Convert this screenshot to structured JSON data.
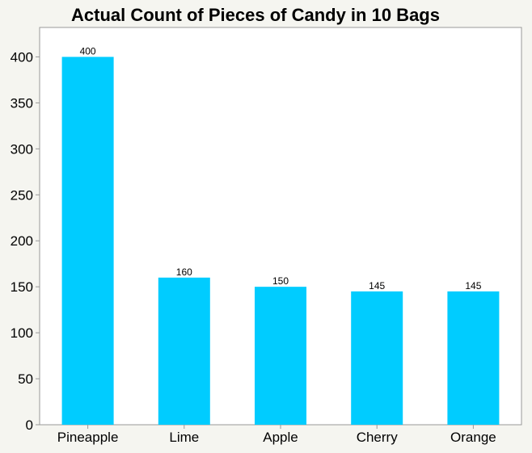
{
  "chart_data": {
    "type": "bar",
    "title": "Actual Count of Pieces of Candy in 10 Bags",
    "categories": [
      "Pineapple",
      "Lime",
      "Apple",
      "Cherry",
      "Orange"
    ],
    "values": [
      400,
      160,
      150,
      145,
      145
    ],
    "data_labels": [
      "400",
      "160",
      "150",
      "145",
      "145"
    ],
    "xlabel": "",
    "ylabel": "",
    "ylim": [
      0,
      432
    ],
    "yticks": [
      0,
      50,
      100,
      150,
      200,
      250,
      300,
      350,
      400
    ],
    "grid": false,
    "bar_color": "#00ccff"
  }
}
